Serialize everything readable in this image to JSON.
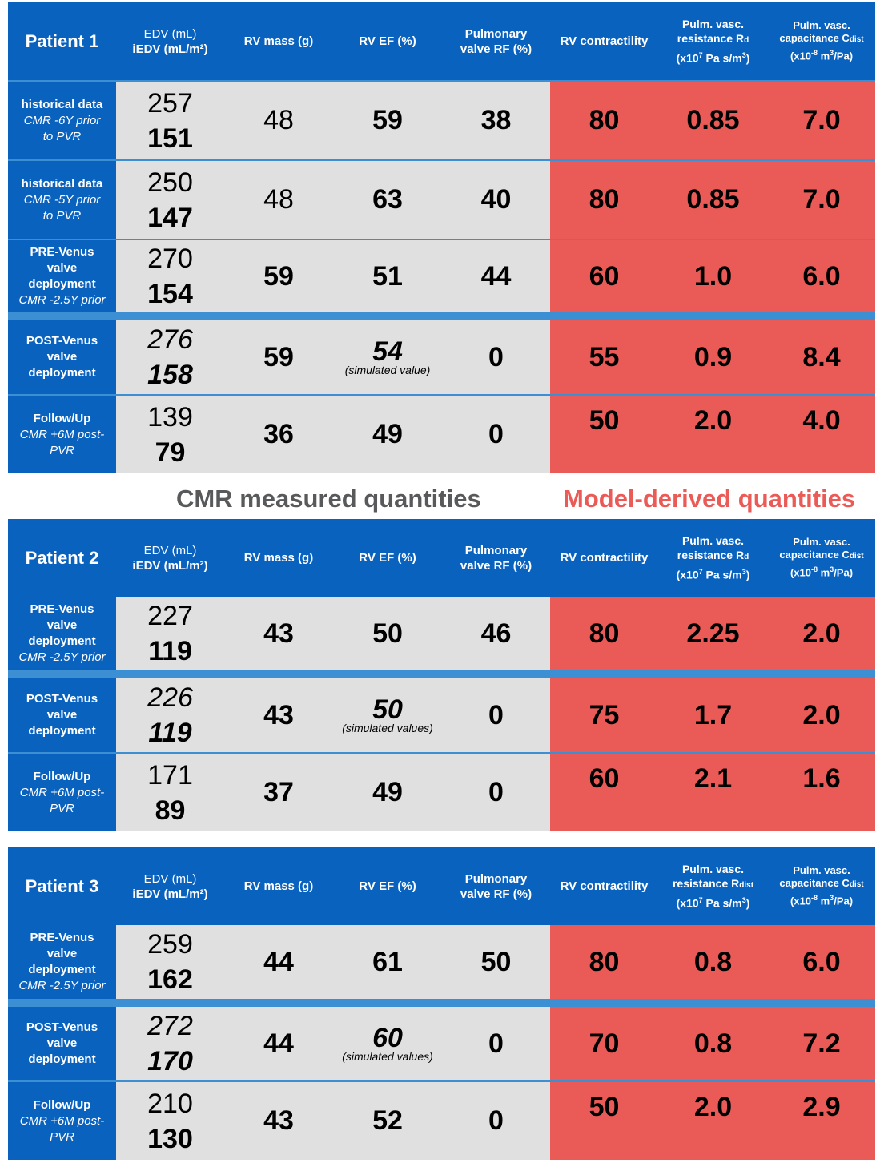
{
  "colors": {
    "header": "#0a62bf",
    "measured": "#e0e0e1",
    "model": "#ea5b57",
    "separator": "#3d8fd4"
  },
  "columns": {
    "edv_line1": "EDV (mL)",
    "edv_line2": "iEDV (mL/m²)",
    "rv_mass": "RV mass (g)",
    "rv_ef": "RV EF (%)",
    "rf_line1": "Pulmonary",
    "rf_line2": "valve RF (%)",
    "contractility": "RV contractility",
    "resistance_line1": "Pulm. vasc.",
    "resistance_line2a": "resistance R",
    "resistance_sub_d": "d",
    "resistance_sub_dist": "dist",
    "resistance_line3a": "(x10",
    "resistance_exp": "7",
    "resistance_line3b": " Pa s/m",
    "resistance_exp3": "3",
    "resistance_line3c": ")",
    "capacitance_line1": "Pulm. vasc.",
    "capacitance_line2a": "capacitance C",
    "capacitance_sub": "dist",
    "capacitance_line3a": "(x10",
    "capacitance_exp": "-8",
    "capacitance_line3b": " m",
    "capacitance_exp3": "3",
    "capacitance_line3c": "/Pa)"
  },
  "legend": {
    "measured": "CMR measured quantities",
    "model": "Model-derived quantities"
  },
  "patients": [
    {
      "title": "Patient 1",
      "rows": [
        {
          "label": "historical data",
          "sub1": "CMR -6Y prior",
          "sub2": "to PVR",
          "edv": "257",
          "iedv": "151",
          "mass": "48",
          "ef": "59",
          "rf": "38",
          "contr": "80",
          "res": "0.85",
          "cap": "7.0"
        },
        {
          "label": "historical data",
          "sub1": "CMR -5Y prior",
          "sub2": "to PVR",
          "edv": "250",
          "iedv": "147",
          "mass": "48",
          "ef": "63",
          "rf": "40",
          "contr": "80",
          "res": "0.85",
          "cap": "7.0"
        },
        {
          "label1": "PRE-Venus",
          "label2": "valve",
          "label3": "deployment",
          "sub1": "CMR -2.5Y prior",
          "edv": "270",
          "iedv": "154",
          "mass": "59",
          "ef": "51",
          "rf": "44",
          "contr": "60",
          "res": "1.0",
          "cap": "6.0"
        },
        {
          "label1": "POST-Venus",
          "label2": "valve",
          "label3": "deployment",
          "edv": "276",
          "iedv": "158",
          "mass": "59",
          "ef": "54",
          "ef_note": "(simulated value)",
          "rf": "0",
          "contr": "55",
          "res": "0.9",
          "cap": "8.4"
        },
        {
          "label": "Follow/Up",
          "sub1": "CMR +6M post-",
          "sub2": "PVR",
          "edv": "139",
          "iedv": "79",
          "mass": "36",
          "ef": "49",
          "rf": "0",
          "contr": "50",
          "res": "2.0",
          "cap": "4.0"
        }
      ]
    },
    {
      "title": "Patient 2",
      "rows": [
        {
          "label1": "PRE-Venus",
          "label2": "valve",
          "label3": "deployment",
          "sub1": "CMR -2.5Y prior",
          "edv": "227",
          "iedv": "119",
          "mass": "43",
          "ef": "50",
          "rf": "46",
          "contr": "80",
          "res": "2.25",
          "cap": "2.0"
        },
        {
          "label1": "POST-Venus",
          "label2": "valve",
          "label3": "deployment",
          "edv": "226",
          "iedv": "119",
          "mass": "43",
          "ef": "50",
          "ef_note": "(simulated values)",
          "rf": "0",
          "contr": "75",
          "res": "1.7",
          "cap": "2.0"
        },
        {
          "label": "Follow/Up",
          "sub1": "CMR +6M post-",
          "sub2": "PVR",
          "edv": "171",
          "iedv": "89",
          "mass": "37",
          "ef": "49",
          "rf": "0",
          "contr": "60",
          "res": "2.1",
          "cap": "1.6"
        }
      ]
    },
    {
      "title": "Patient 3",
      "rows": [
        {
          "label1": "PRE-Venus",
          "label2": "valve",
          "label3": "deployment",
          "sub1": "CMR -2.5Y prior",
          "edv": "259",
          "iedv": "162",
          "mass": "44",
          "ef": "61",
          "rf": "50",
          "contr": "80",
          "res": "0.8",
          "cap": "6.0"
        },
        {
          "label1": "POST-Venus",
          "label2": "valve",
          "label3": "deployment",
          "edv": "272",
          "iedv": "170",
          "mass": "44",
          "ef": "60",
          "ef_note": "(simulated values)",
          "rf": "0",
          "contr": "70",
          "res": "0.8",
          "cap": "7.2"
        },
        {
          "label": "Follow/Up",
          "sub1": "CMR +6M post-",
          "sub2": "PVR",
          "edv": "210",
          "iedv": "130",
          "mass": "43",
          "ef": "52",
          "rf": "0",
          "contr": "50",
          "res": "2.0",
          "cap": "2.9"
        }
      ]
    }
  ]
}
